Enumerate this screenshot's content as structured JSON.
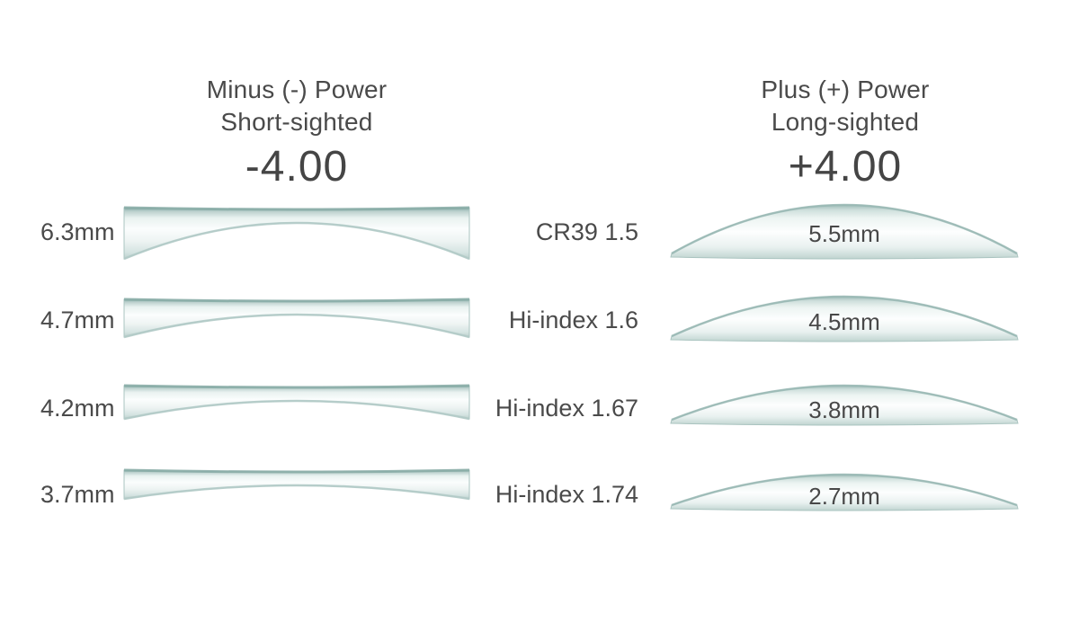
{
  "diagram": {
    "left_header": {
      "line1": "Minus (-) Power",
      "line2": "Short-sighted",
      "power": "-4.00"
    },
    "right_header": {
      "line1": "Plus (+) Power",
      "line2": "Long-sighted",
      "power": "+4.00"
    },
    "rows": [
      {
        "minus_thickness": "6.3mm",
        "material": "CR39 1.5",
        "plus_thickness": "5.5mm"
      },
      {
        "minus_thickness": "4.7mm",
        "material": "Hi-index 1.6",
        "plus_thickness": "4.5mm"
      },
      {
        "minus_thickness": "4.2mm",
        "material": "Hi-index 1.67",
        "plus_thickness": "3.8mm"
      },
      {
        "minus_thickness": "3.7mm",
        "material": "Hi-index 1.74",
        "plus_thickness": "2.7mm"
      }
    ],
    "colors": {
      "background": "#ffffff",
      "text": "#4a4a4a",
      "lens_edge_dark": "#86aaa5",
      "lens_edge_mid": "#9dbab6",
      "lens_tint_light": "#dceae8",
      "lens_body": "#fbfdfd"
    }
  }
}
